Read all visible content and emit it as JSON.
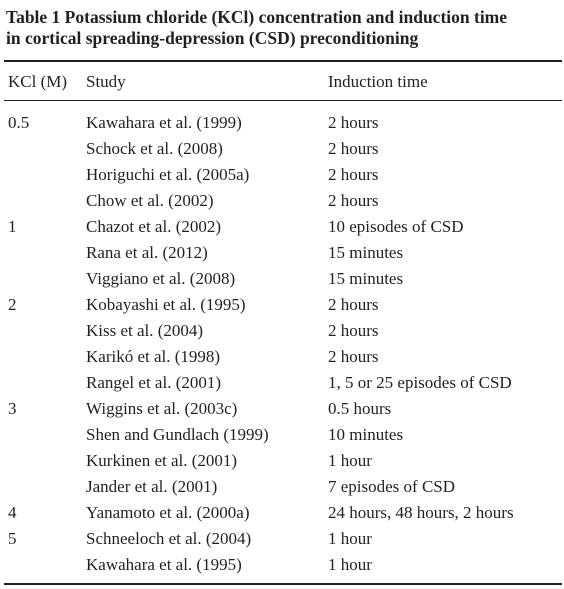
{
  "header": {
    "title_lines": [
      "Table 1 Potassium chloride (KCl) concentration and induction time",
      "in cortical spreading-depression (CSD) preconditioning"
    ]
  },
  "table": {
    "columns": [
      "KCl (M)",
      "Study",
      "Induction time"
    ],
    "groups": [
      {
        "kcl": "0.5",
        "rows": [
          {
            "study": "Kawahara et al. (1999)",
            "time": "2 hours"
          },
          {
            "study": "Schock et al. (2008)",
            "time": "2 hours"
          },
          {
            "study": "Horiguchi et al. (2005a)",
            "time": "2 hours"
          },
          {
            "study": "Chow et al. (2002)",
            "time": "2 hours"
          }
        ]
      },
      {
        "kcl": "1",
        "rows": [
          {
            "study": "Chazot et al. (2002)",
            "time": "10 episodes of CSD"
          },
          {
            "study": "Rana et al. (2012)",
            "time": "15 minutes"
          },
          {
            "study": "Viggiano et al. (2008)",
            "time": "15 minutes"
          }
        ]
      },
      {
        "kcl": "2",
        "rows": [
          {
            "study": "Kobayashi et al. (1995)",
            "time": "2 hours"
          },
          {
            "study": "Kiss et al. (2004)",
            "time": "2 hours"
          },
          {
            "study": "Karikó et al. (1998)",
            "time": "2 hours"
          },
          {
            "study": "Rangel et al. (2001)",
            "time": "1, 5 or 25 episodes of CSD"
          }
        ]
      },
      {
        "kcl": "3",
        "rows": [
          {
            "study": "Wiggins et al. (2003c)",
            "time": "0.5 hours"
          },
          {
            "study": "Shen and Gundlach (1999)",
            "time": "10 minutes"
          },
          {
            "study": "Kurkinen et al. (2001)",
            "time": "1 hour"
          },
          {
            "study": "Jander et al. (2001)",
            "time": "7 episodes of CSD"
          }
        ]
      },
      {
        "kcl": "4",
        "rows": [
          {
            "study": "Yanamoto et al. (2000a)",
            "time": "24 hours, 48 hours, 2 hours"
          }
        ]
      },
      {
        "kcl": "5",
        "rows": [
          {
            "study": "Schneeloch et al. (2004)",
            "time": "1 hour"
          },
          {
            "study": "Kawahara et al. (1995)",
            "time": "1 hour"
          }
        ]
      }
    ]
  }
}
